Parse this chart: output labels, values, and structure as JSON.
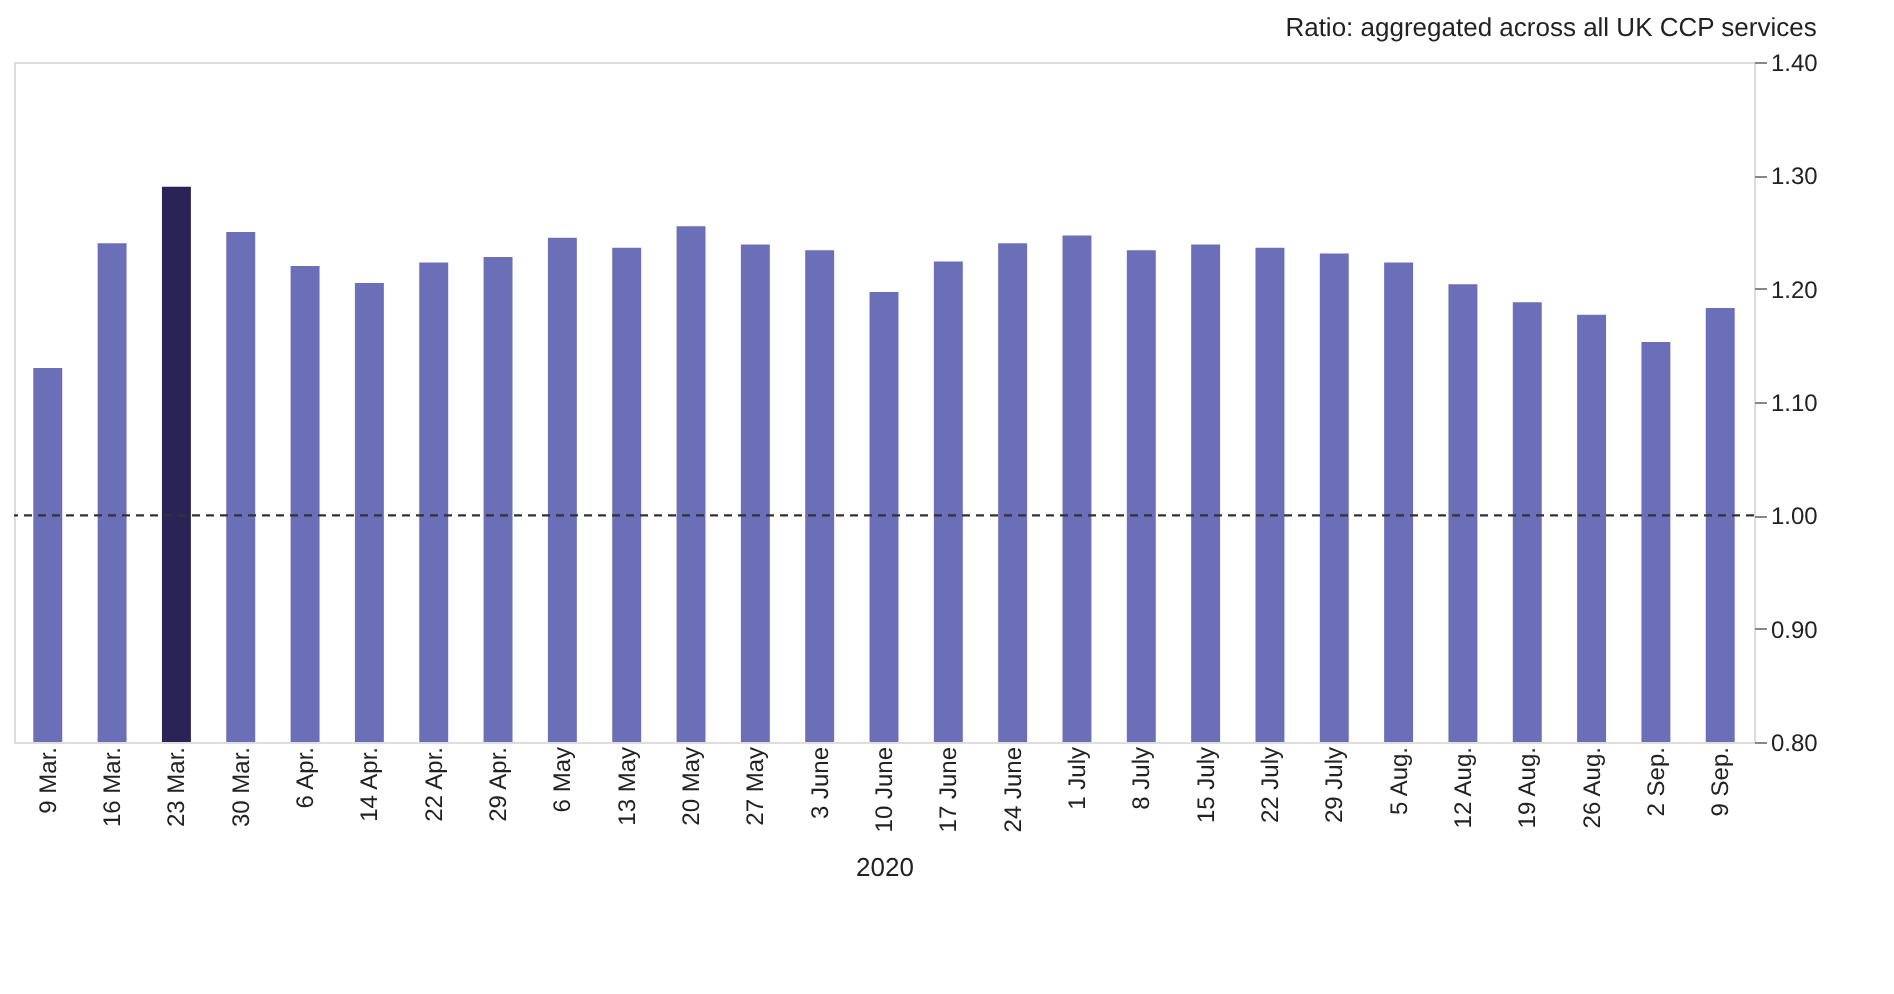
{
  "chart_data": {
    "type": "bar",
    "subtitle": "Ratio: aggregated across all UK CCP services",
    "xlabel": "2020",
    "categories": [
      "9 Mar.",
      "16 Mar.",
      "23 Mar.",
      "30 Mar.",
      "6 Apr.",
      "14 Apr.",
      "22 Apr.",
      "29 Apr.",
      "6 May",
      "13 May",
      "20 May",
      "27 May",
      "3 June",
      "10 June",
      "17 June",
      "24 June",
      "1 July",
      "8 July",
      "15 July",
      "22 July",
      "29 July",
      "5 Aug.",
      "12 Aug.",
      "19 Aug.",
      "26 Aug.",
      "2 Sep.",
      "9 Sep."
    ],
    "values": [
      1.13,
      1.24,
      1.29,
      1.25,
      1.22,
      1.205,
      1.223,
      1.228,
      1.245,
      1.236,
      1.255,
      1.239,
      1.234,
      1.197,
      1.224,
      1.24,
      1.247,
      1.234,
      1.239,
      1.236,
      1.231,
      1.223,
      1.204,
      1.188,
      1.177,
      1.153,
      1.183
    ],
    "colors": [
      "#6b6fb8",
      "#6b6fb8",
      "#2a2356",
      "#6b6fb8",
      "#6b6fb8",
      "#6b6fb8",
      "#6b6fb8",
      "#6b6fb8",
      "#6b6fb8",
      "#6b6fb8",
      "#6b6fb8",
      "#6b6fb8",
      "#6b6fb8",
      "#6b6fb8",
      "#6b6fb8",
      "#6b6fb8",
      "#6b6fb8",
      "#6b6fb8",
      "#6b6fb8",
      "#6b6fb8",
      "#6b6fb8",
      "#6b6fb8",
      "#6b6fb8",
      "#6b6fb8",
      "#6b6fb8",
      "#6b6fb8",
      "#6b6fb8"
    ],
    "ylim": [
      0.8,
      1.4
    ],
    "yticks": [
      {
        "value": 0.8,
        "label": "0.80"
      },
      {
        "value": 0.9,
        "label": "0.90"
      },
      {
        "value": 1.0,
        "label": "1.00"
      },
      {
        "value": 1.1,
        "label": "1.10"
      },
      {
        "value": 1.2,
        "label": "1.20"
      },
      {
        "value": 1.3,
        "label": "1.30"
      },
      {
        "value": 1.4,
        "label": "1.40"
      }
    ],
    "ref_lines": [
      {
        "axis": "y",
        "value": 1.0,
        "color": "#333333",
        "line_style": "dashed"
      }
    ],
    "grid": false
  }
}
